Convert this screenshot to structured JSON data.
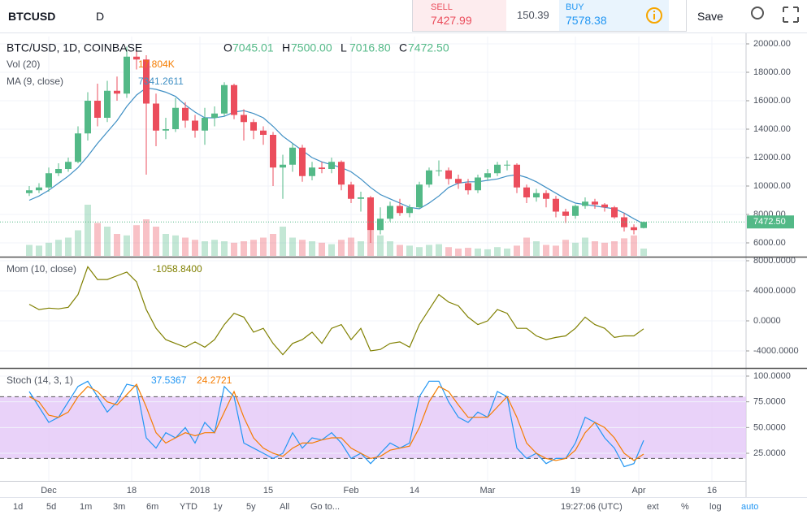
{
  "toolbar": {
    "symbol": "BTCUSD",
    "interval": "D",
    "sell_label": "SELL",
    "sell_price": "7427.99",
    "spread": "150.39",
    "buy_label": "BUY",
    "buy_price": "7578.38",
    "save": "Save"
  },
  "bottom_bar": {
    "ranges": [
      "1d",
      "5d",
      "1m",
      "3m",
      "6m",
      "YTD",
      "1y",
      "5y",
      "All"
    ],
    "goto": "Go to...",
    "time": "19:27:06 (UTC)",
    "options": [
      "ext",
      "%",
      "log",
      "auto"
    ]
  },
  "chart_data": {
    "type": "candlestick",
    "title": "BTC/USD, 1D, COINBASE",
    "ohlc_labels": [
      "O",
      "H",
      "L",
      "C"
    ],
    "ohlc_value_labels": [
      "7045.01",
      "7500.00",
      "7016.80",
      "7472.50"
    ],
    "up_color": "#53b987",
    "down_color": "#eb4d5c",
    "x": [
      -4,
      -2,
      0,
      2,
      4,
      6,
      8,
      10,
      12,
      14,
      16,
      18,
      20,
      22,
      24,
      26,
      28,
      30,
      32,
      34,
      36,
      38,
      40,
      42,
      44,
      46,
      48,
      50,
      52,
      54,
      56,
      58,
      60,
      62,
      64,
      66,
      68,
      70,
      72,
      74,
      76,
      78,
      80,
      82,
      84,
      86,
      88,
      90,
      92,
      94,
      96,
      98,
      100,
      102,
      104,
      106,
      108,
      110,
      112,
      114,
      116,
      118,
      120,
      122
    ],
    "xlim": [
      -10,
      143
    ],
    "xticks": [
      {
        "value": 0,
        "label": "Dec"
      },
      {
        "value": 17,
        "label": "18"
      },
      {
        "value": 31,
        "label": "2018"
      },
      {
        "value": 45,
        "label": "15"
      },
      {
        "value": 62,
        "label": "Feb"
      },
      {
        "value": 75,
        "label": "14"
      },
      {
        "value": 90,
        "label": "Mar"
      },
      {
        "value": 108,
        "label": "19"
      },
      {
        "value": 121,
        "label": "Apr"
      },
      {
        "value": 136,
        "label": "16"
      }
    ],
    "ylim": [
      5086,
      20514
    ],
    "yticks": [
      {
        "value": 6000,
        "label": "6000.00"
      },
      {
        "value": 8000,
        "label": "8000.00"
      },
      {
        "value": 10000,
        "label": "10000.00"
      },
      {
        "value": 12000,
        "label": "12000.00"
      },
      {
        "value": 14000,
        "label": "14000.00"
      },
      {
        "value": 16000,
        "label": "16000.00"
      },
      {
        "value": 18000,
        "label": "18000.00"
      },
      {
        "value": 20000,
        "label": "20000.00"
      }
    ],
    "open": [
      9500,
      9700,
      9900,
      10900,
      11200,
      11700,
      13700,
      16000,
      14800,
      16700,
      16500,
      19100,
      18900,
      15800,
      13900,
      14000,
      15500,
      14600,
      13900,
      14800,
      15100,
      17100,
      15000,
      14500,
      13900,
      13600,
      11300,
      11500,
      12700,
      10700,
      11300,
      11200,
      11700,
      10100,
      9100,
      9200,
      6900,
      7700,
      8600,
      8100,
      8500,
      10100,
      11100,
      11100,
      10500,
      10200,
      9700,
      10600,
      10900,
      11500,
      11500,
      9900,
      9200,
      9500,
      9100,
      8200,
      7900,
      8600,
      8900,
      8700,
      8500,
      7800,
      7100,
      7045.01
    ],
    "high": [
      10000,
      10200,
      11300,
      11600,
      12000,
      14200,
      16600,
      17200,
      17400,
      17700,
      19800,
      19500,
      19200,
      16500,
      14800,
      16200,
      15900,
      15000,
      15500,
      15600,
      17300,
      17200,
      15400,
      14700,
      14200,
      13800,
      12200,
      13000,
      12900,
      11700,
      11700,
      12000,
      11800,
      10300,
      9600,
      9300,
      8500,
      8900,
      9100,
      8700,
      10300,
      11300,
      11800,
      11300,
      10800,
      10500,
      10800,
      11200,
      11700,
      11800,
      11600,
      10100,
      9800,
      9700,
      9300,
      8400,
      8700,
      9200,
      9100,
      8800,
      8600,
      8100,
      7300,
      7500
    ],
    "low": [
      9300,
      9500,
      9600,
      10700,
      11000,
      11600,
      13200,
      14200,
      14500,
      16000,
      16200,
      18200,
      10800,
      12800,
      13300,
      13800,
      14100,
      13400,
      12900,
      14200,
      14900,
      14700,
      13200,
      13300,
      12900,
      10000,
      9100,
      11000,
      10300,
      10400,
      10900,
      10900,
      9700,
      8800,
      8200,
      6000,
      6600,
      7500,
      7900,
      7800,
      8400,
      9900,
      10700,
      10100,
      9800,
      9400,
      9500,
      10400,
      10700,
      11100,
      9500,
      8800,
      8900,
      8500,
      7800,
      7400,
      7700,
      8400,
      8400,
      8200,
      7700,
      6800,
      6600,
      7016.8
    ],
    "close": [
      9700,
      9900,
      10900,
      11200,
      11700,
      13700,
      16000,
      14800,
      16700,
      16500,
      19100,
      18900,
      15800,
      13900,
      14000,
      15500,
      14600,
      13900,
      14800,
      15100,
      17100,
      15000,
      14500,
      13900,
      13600,
      11300,
      11500,
      12700,
      10700,
      11300,
      11200,
      11700,
      10100,
      9100,
      9200,
      6900,
      7700,
      8600,
      8100,
      8500,
      10100,
      11100,
      11100,
      10500,
      10200,
      9700,
      10600,
      10900,
      11500,
      11500,
      9900,
      9200,
      9500,
      9100,
      8200,
      7900,
      8600,
      8900,
      8700,
      8500,
      7800,
      7100,
      6900,
      7472.5
    ],
    "last_price_label": "7472.50",
    "volume": {
      "name": "Vol (20)",
      "value_label": "17.804K",
      "ylim": [
        0,
        300
      ],
      "values": [
        15,
        14,
        18,
        22,
        25,
        35,
        70,
        45,
        40,
        30,
        28,
        42,
        50,
        40,
        30,
        28,
        25,
        22,
        20,
        22,
        20,
        18,
        20,
        22,
        25,
        30,
        40,
        25,
        22,
        20,
        18,
        16,
        22,
        25,
        20,
        35,
        28,
        20,
        15,
        14,
        12,
        15,
        16,
        12,
        10,
        11,
        10,
        9,
        12,
        10,
        14,
        25,
        20,
        15,
        14,
        22,
        18,
        25,
        20,
        18,
        20,
        24,
        28,
        10
      ]
    },
    "ma": {
      "name": "MA (9, close)",
      "color": "#3f8fc4",
      "value_label": "7341.2611",
      "values": [
        9000,
        9300,
        9700,
        10200,
        10700,
        11300,
        12100,
        13000,
        13800,
        14600,
        15600,
        16400,
        16900,
        16800,
        16600,
        16300,
        15700,
        15200,
        14800,
        14800,
        14900,
        15200,
        15300,
        15100,
        14800,
        14200,
        13500,
        13000,
        12500,
        12000,
        11700,
        11500,
        11300,
        11000,
        10500,
        9900,
        9400,
        9100,
        8800,
        8500,
        8400,
        8800,
        9300,
        9900,
        10200,
        10300,
        10300,
        10400,
        10500,
        10700,
        10800,
        10600,
        10300,
        9900,
        9500,
        9100,
        8800,
        8700,
        8600,
        8500,
        8400,
        8100,
        7700,
        7341.2611
      ]
    },
    "momentum": {
      "name": "Mom (10, close)",
      "color": "#808000",
      "value_label": "-1058.8400",
      "ylim": [
        -6162,
        8324
      ],
      "yticks": [
        {
          "value": -4000,
          "label": "-4000.0000"
        },
        {
          "value": 0,
          "label": "0.0000"
        },
        {
          "value": 4000,
          "label": "4000.0000"
        },
        {
          "value": 8000,
          "label": "8000.0000"
        }
      ],
      "values": [
        2200,
        1500,
        1700,
        1600,
        1800,
        3500,
        7200,
        5500,
        5500,
        6000,
        6500,
        5200,
        1500,
        -1000,
        -2500,
        -3000,
        -3500,
        -2800,
        -3500,
        -2500,
        -500,
        1000,
        500,
        -1500,
        -1000,
        -3000,
        -4500,
        -3000,
        -2500,
        -1500,
        -3000,
        -1000,
        -500,
        -2500,
        -1000,
        -4000,
        -3800,
        -3000,
        -2800,
        -3500,
        -500,
        1500,
        3500,
        2500,
        2000,
        500,
        -500,
        0,
        1500,
        1000,
        -1000,
        -1000,
        -2000,
        -2500,
        -2200,
        -2000,
        -1000,
        500,
        -500,
        -1000,
        -2200,
        -2000,
        -2000,
        -1058.84
      ]
    },
    "stochastic": {
      "name": "Stoch (14, 3, 1)",
      "ylim": [
        -1.8,
        106.3
      ],
      "yticks": [
        {
          "value": 25,
          "label": "25.0000"
        },
        {
          "value": 50,
          "label": "50.0000"
        },
        {
          "value": 75,
          "label": "75.0000"
        },
        {
          "value": 100,
          "label": "100.0000"
        }
      ],
      "bands": [
        80,
        20
      ],
      "band_color": "#e4c7f7",
      "series": [
        {
          "color": "#2196f3",
          "value_label": "37.5367",
          "values": [
            85,
            70,
            55,
            60,
            75,
            90,
            95,
            80,
            65,
            75,
            92,
            90,
            40,
            30,
            45,
            40,
            50,
            35,
            55,
            45,
            90,
            80,
            35,
            30,
            25,
            20,
            25,
            45,
            30,
            40,
            38,
            45,
            35,
            20,
            25,
            15,
            25,
            35,
            30,
            35,
            80,
            95,
            95,
            75,
            60,
            55,
            65,
            60,
            85,
            80,
            30,
            20,
            25,
            15,
            20,
            20,
            35,
            60,
            55,
            40,
            30,
            12,
            15,
            37.5367
          ]
        },
        {
          "color": "#f57c00",
          "value_label": "24.2721",
          "values": [
            80,
            75,
            62,
            60,
            65,
            80,
            90,
            85,
            75,
            72,
            82,
            92,
            70,
            45,
            35,
            40,
            45,
            42,
            45,
            45,
            65,
            85,
            60,
            40,
            30,
            25,
            22,
            30,
            35,
            35,
            38,
            40,
            40,
            30,
            25,
            20,
            22,
            28,
            30,
            32,
            50,
            75,
            90,
            85,
            72,
            60,
            60,
            60,
            70,
            80,
            60,
            35,
            25,
            20,
            18,
            20,
            28,
            45,
            55,
            50,
            40,
            25,
            18,
            24.2721
          ]
        }
      ]
    }
  }
}
